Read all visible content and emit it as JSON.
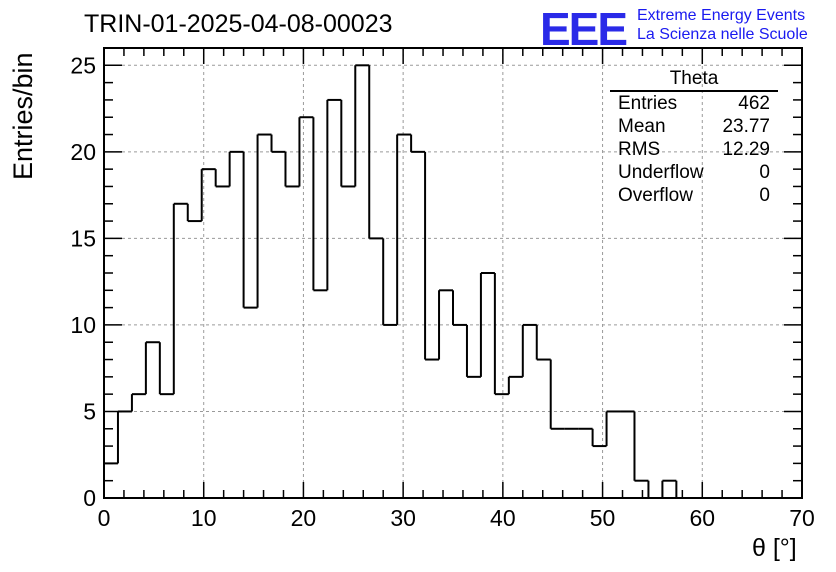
{
  "header": {
    "title": "TRIN-01-2025-04-08-00023",
    "logo_mark": "EEE",
    "logo_line1": "Extreme Energy Events",
    "logo_line2": "La Scienza nelle Scuole"
  },
  "stats": {
    "title": "Theta",
    "rows": [
      {
        "label": "Entries",
        "value": "462"
      },
      {
        "label": "Mean",
        "value": "23.77"
      },
      {
        "label": "RMS",
        "value": "12.29"
      },
      {
        "label": "Underflow",
        "value": "0"
      },
      {
        "label": "Overflow",
        "value": "0"
      }
    ]
  },
  "chart_data": {
    "type": "histogram",
    "title": "TRIN-01-2025-04-08-00023",
    "xlabel": "θ [°]",
    "ylabel": "Entries/bin",
    "xlim": [
      0,
      70
    ],
    "ylim": [
      0,
      26
    ],
    "bin_width": 1.4,
    "x_ticks": [
      0,
      10,
      20,
      30,
      40,
      50,
      60,
      70
    ],
    "y_ticks": [
      0,
      5,
      10,
      15,
      20,
      25
    ],
    "grid": true,
    "values": [
      2,
      5,
      6,
      9,
      6,
      17,
      16,
      19,
      18,
      20,
      11,
      21,
      20,
      18,
      22,
      12,
      23,
      18,
      25,
      15,
      10,
      21,
      20,
      8,
      12,
      10,
      7,
      13,
      6,
      7,
      10,
      8,
      4,
      4,
      4,
      3,
      5,
      5,
      1,
      0,
      1,
      0,
      0,
      0,
      0,
      0,
      0,
      0,
      0,
      0
    ],
    "line_color": "#000000"
  }
}
